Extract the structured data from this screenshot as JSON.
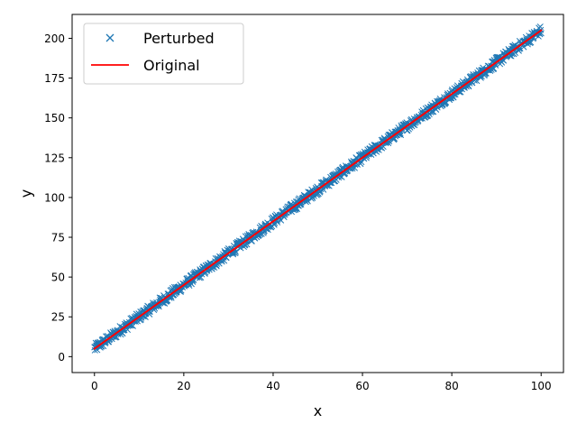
{
  "chart_data": {
    "type": "scatter",
    "xlabel": "x",
    "ylabel": "y",
    "xlim": [
      -5,
      105
    ],
    "ylim": [
      -10,
      215
    ],
    "xticks": [
      0,
      20,
      40,
      60,
      80,
      100
    ],
    "yticks": [
      0,
      25,
      50,
      75,
      100,
      125,
      150,
      175,
      200
    ],
    "grid": false,
    "legend_position": "top-left",
    "series": [
      {
        "name": "Perturbed",
        "kind": "markers",
        "marker": "x",
        "color": "#1f77b4",
        "x_range": [
          0,
          100
        ],
        "slope": 2,
        "intercept": 5,
        "noise_amplitude": 3,
        "point_count": 1000
      },
      {
        "name": "Original",
        "kind": "line",
        "color": "#ff0000",
        "x": [
          0,
          100
        ],
        "y": [
          5,
          205
        ]
      }
    ]
  }
}
